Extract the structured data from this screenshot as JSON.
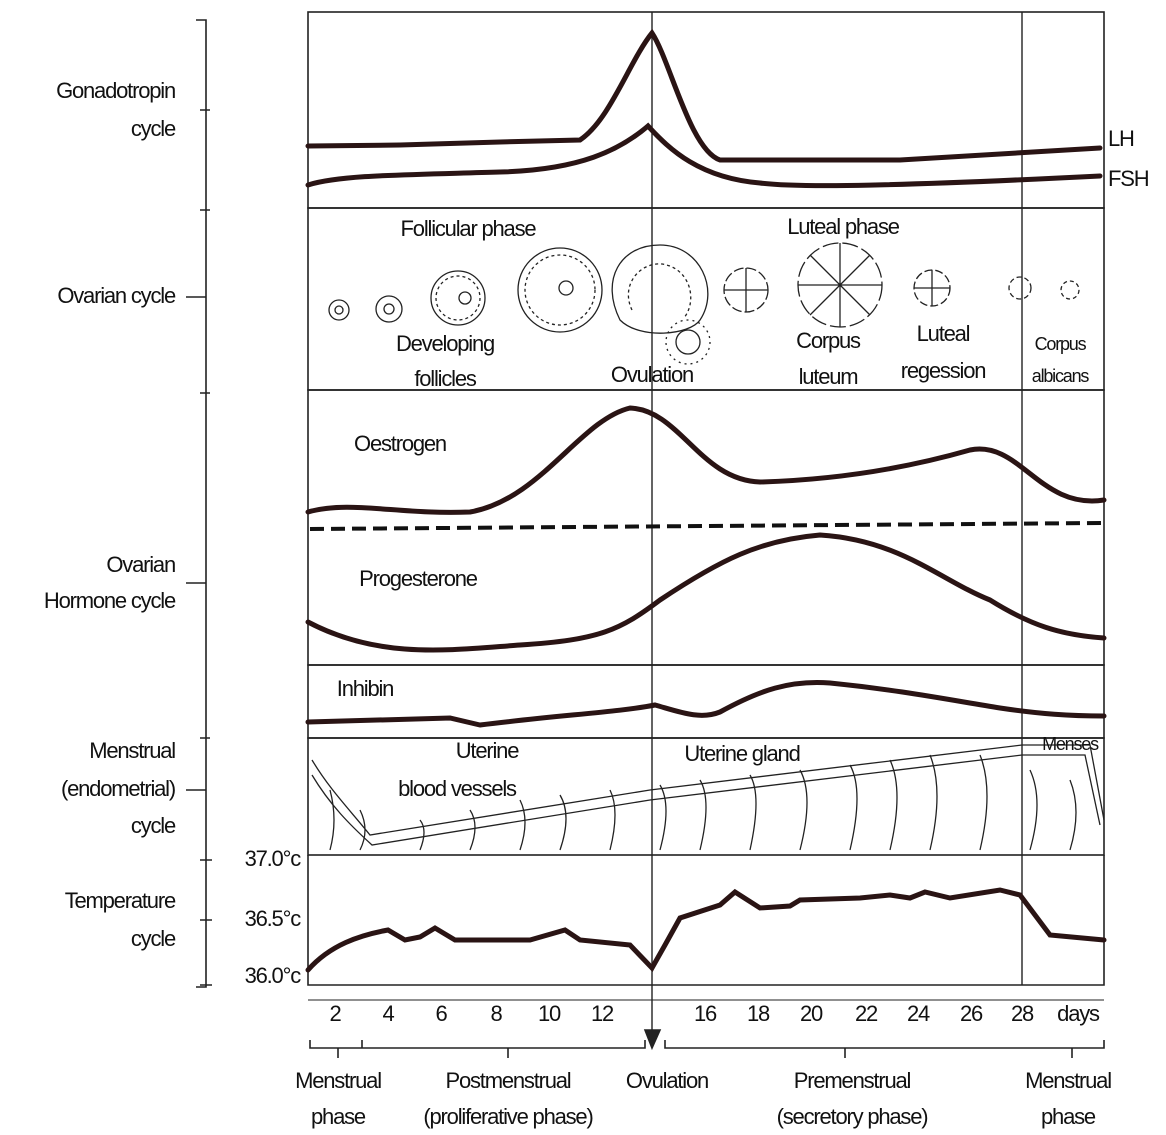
{
  "left_labels": {
    "gonadotropin": [
      "Gonadotropin",
      "cycle"
    ],
    "ovarian": [
      "Ovarian cycle"
    ],
    "hormone": [
      "Ovarian",
      "Hormone cycle"
    ],
    "menstrual": [
      "Menstrual",
      "(endometrial)",
      "cycle"
    ],
    "temperature": [
      "Temperature",
      "cycle"
    ]
  },
  "temperature_ticks": [
    "37.0°c",
    "36.5°c",
    "36.0°c"
  ],
  "hormones": {
    "lh": "LH",
    "fsh": "FSH",
    "oestrogen": "Oestrogen",
    "progesterone": "Progesterone",
    "inhibin": "Inhibin"
  },
  "ovarian_cycle": {
    "follicular": "Follicular phase",
    "luteal": "Luteal phase",
    "developing": [
      "Developing",
      "follicles"
    ],
    "ovulation": "Ovulation",
    "corpus_luteum": [
      "Corpus",
      "luteum"
    ],
    "regression": [
      "Luteal",
      "regession"
    ],
    "corpus_albicans": [
      "Corpus",
      "albicans"
    ]
  },
  "endometrium": {
    "vessels": [
      "Uterine",
      "blood vessels"
    ],
    "gland": "Uterine gland",
    "menses": "Menses"
  },
  "days": [
    "2",
    "4",
    "6",
    "8",
    "10",
    "12",
    "16",
    "18",
    "20",
    "22",
    "24",
    "26",
    "28",
    "days"
  ],
  "phases": [
    [
      "Menstrual",
      "phase"
    ],
    [
      "Postmenstrual",
      "(proliferative phase)"
    ],
    [
      "Ovulation"
    ],
    [
      "Premenstrual",
      "(secretory phase)"
    ],
    [
      "Menstrual",
      "phase"
    ]
  ]
}
